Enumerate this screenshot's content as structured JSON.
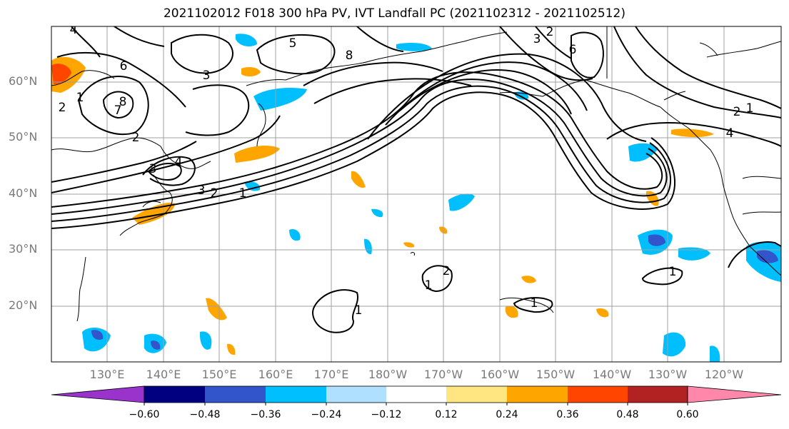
{
  "title": "2021102012 F018 300 hPa PV, IVT Landfall PC (2021102312 - 2021102512)",
  "lat_labels": [
    "60°N",
    "50°N",
    "40°N",
    "30°N",
    "20°N"
  ],
  "lon_labels": [
    "130°E",
    "140°E",
    "150°E",
    "160°E",
    "170°E",
    "180°W",
    "170°W",
    "160°W",
    "150°W",
    "140°W",
    "130°W",
    "120°W"
  ],
  "colorbar": {
    "tick_labels": [
      "−0.60",
      "−0.48",
      "−0.36",
      "−0.24",
      "−0.12",
      "0.12",
      "0.24",
      "0.36",
      "0.48",
      "0.60"
    ],
    "colors": [
      "#9933cc",
      "#000080",
      "#3355cc",
      "#00bfff",
      "#b0e0ff",
      "#ffffff",
      "#ffe680",
      "#ffa500",
      "#ff4500",
      "#b22222",
      "#ff88aa"
    ]
  },
  "contour_labels": [
    "4",
    "5",
    "6",
    "8",
    "3",
    "2",
    "1",
    "7",
    "8",
    "2",
    "3",
    "4",
    "3",
    "2",
    "1",
    "6",
    "3",
    "2",
    "1",
    "4",
    "2",
    "1",
    "2",
    "1",
    "1",
    "1"
  ]
}
